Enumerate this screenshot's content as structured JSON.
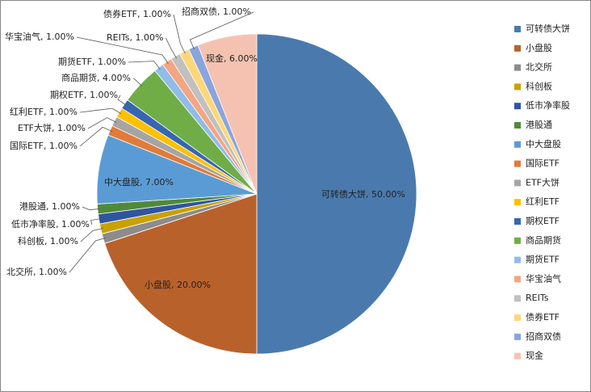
{
  "chart_data": {
    "type": "pie",
    "categories": [
      "可转债大饼",
      "小盘股",
      "北交所",
      "科创板",
      "低市净率股",
      "港股通",
      "中大盘股",
      "国际ETF",
      "ETF大饼",
      "红利ETF",
      "期权ETF",
      "商品期货",
      "期货ETF",
      "华宝油气",
      "REITs",
      "债券ETF",
      "招商双债",
      "现金"
    ],
    "values": [
      50,
      20,
      1,
      1,
      1,
      1,
      7,
      1,
      1,
      1,
      1,
      4,
      1,
      1,
      1,
      1,
      1,
      6
    ],
    "value_labels": [
      "可转债大饼, 50.00%",
      "小盘股, 20.00%",
      "北交所, 1.00%",
      "科创板, 1.00%",
      "低市净率股, 1.00%",
      "港股通, 1.00%",
      "中大盘股, 7.00%",
      "国际ETF, 1.00%",
      "ETF大饼, 1.00%",
      "红利ETF, 1.00%",
      "期权ETF, 1.00%",
      "商品期货, 4.00%",
      "期货ETF, 1.00%",
      "华宝油气, 1.00%",
      "REITs, 1.00%",
      "债券ETF, 1.00%",
      "招商双债, 1.00%",
      "现金, 6.00%"
    ],
    "colors": [
      "#4a7aad",
      "#b9612a",
      "#8c8c8c",
      "#c9a100",
      "#2f55a0",
      "#4f8a3b",
      "#5b9bd5",
      "#e07b39",
      "#a5a5a5",
      "#ffc000",
      "#3766b1",
      "#70ad47",
      "#90bce8",
      "#f4a582",
      "#c0c0c0",
      "#ffd77a",
      "#8aa5dc",
      "#f5c2b2"
    ],
    "legend": "right"
  }
}
